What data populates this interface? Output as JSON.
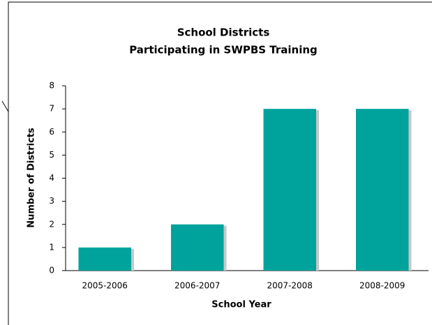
{
  "chart_data": {
    "type": "bar",
    "title": [
      "School Districts",
      "Participating in SWPBS Training"
    ],
    "x_label": "School Year",
    "y_label": "Number of Districts",
    "categories": [
      "2005-2006",
      "2006-2007",
      "2007-2008",
      "2008-2009"
    ],
    "values": [
      1,
      2,
      7,
      7
    ],
    "color": "#00a39c",
    "ylim": [
      0,
      8
    ],
    "yticks": [
      0,
      1,
      2,
      3,
      4,
      5,
      6,
      7,
      8
    ],
    "grid": false
  }
}
